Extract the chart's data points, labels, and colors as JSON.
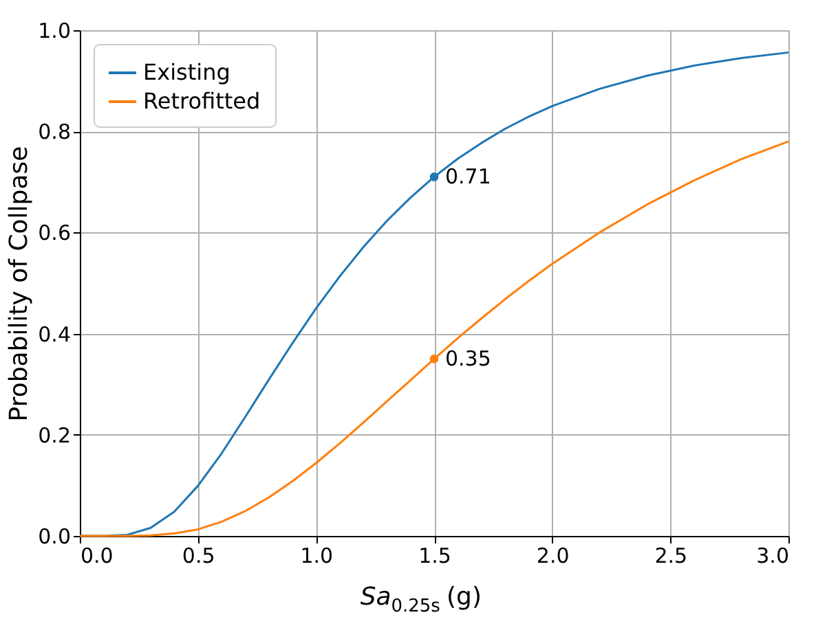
{
  "chart_data": {
    "type": "line",
    "xlabel": "Sa$_{0.25s}$ (g)",
    "ylabel": "Probability of Collpase",
    "xlim": [
      0,
      3
    ],
    "ylim": [
      0,
      1
    ],
    "xticks": [
      {
        "value": 0,
        "label": "0.0"
      },
      {
        "value": 0.5,
        "label": "0.5"
      },
      {
        "value": 1,
        "label": "1.0"
      },
      {
        "value": 1.5,
        "label": "1.5"
      },
      {
        "value": 2,
        "label": "2.0"
      },
      {
        "value": 2.5,
        "label": "2.5"
      },
      {
        "value": 3,
        "label": "3.0"
      }
    ],
    "yticks": [
      {
        "value": 0,
        "label": "0.0"
      },
      {
        "value": 0.2,
        "label": "0.2"
      },
      {
        "value": 0.4,
        "label": "0.4"
      },
      {
        "value": 0.6,
        "label": "0.6"
      },
      {
        "value": 0.8,
        "label": "0.8"
      },
      {
        "value": 1,
        "label": "1.0"
      }
    ],
    "grid": true,
    "legend": "top left",
    "marker": "none",
    "line_style": "solid",
    "x": [
      0,
      0.1,
      0.2,
      0.3,
      0.4,
      0.5,
      0.6,
      0.7,
      0.8,
      0.9,
      1.0,
      1.1,
      1.2,
      1.3,
      1.4,
      1.5,
      1.6,
      1.7,
      1.8,
      1.9,
      2.0,
      2.2,
      2.4,
      2.6,
      2.8,
      3.0
    ],
    "series": [
      {
        "name": "Existing",
        "color": "#1f77b4",
        "values": [
          0,
          0,
          0.002,
          0.016,
          0.048,
          0.099,
          0.163,
          0.235,
          0.309,
          0.381,
          0.45,
          0.513,
          0.571,
          0.623,
          0.669,
          0.71,
          0.746,
          0.777,
          0.805,
          0.829,
          0.85,
          0.884,
          0.91,
          0.93,
          0.945,
          0.956
        ]
      },
      {
        "name": "Retrofitted",
        "color": "#ff7f0e",
        "values": [
          0,
          0,
          0,
          0.001,
          0.005,
          0.013,
          0.028,
          0.049,
          0.076,
          0.108,
          0.144,
          0.183,
          0.224,
          0.266,
          0.308,
          0.35,
          0.391,
          0.43,
          0.468,
          0.504,
          0.538,
          0.6,
          0.655,
          0.703,
          0.745,
          0.78
        ]
      },
      {
        "type": "scatter",
        "marker": "circle",
        "color": "#1f77b4",
        "x": [
          1.5
        ],
        "values": [
          0.71
        ],
        "value_labels": [
          "0.71"
        ]
      },
      {
        "type": "scatter",
        "marker": "circle",
        "color": "#ff7f0e",
        "x": [
          1.5
        ],
        "values": [
          0.35
        ],
        "value_labels": [
          "0.35"
        ]
      }
    ]
  }
}
